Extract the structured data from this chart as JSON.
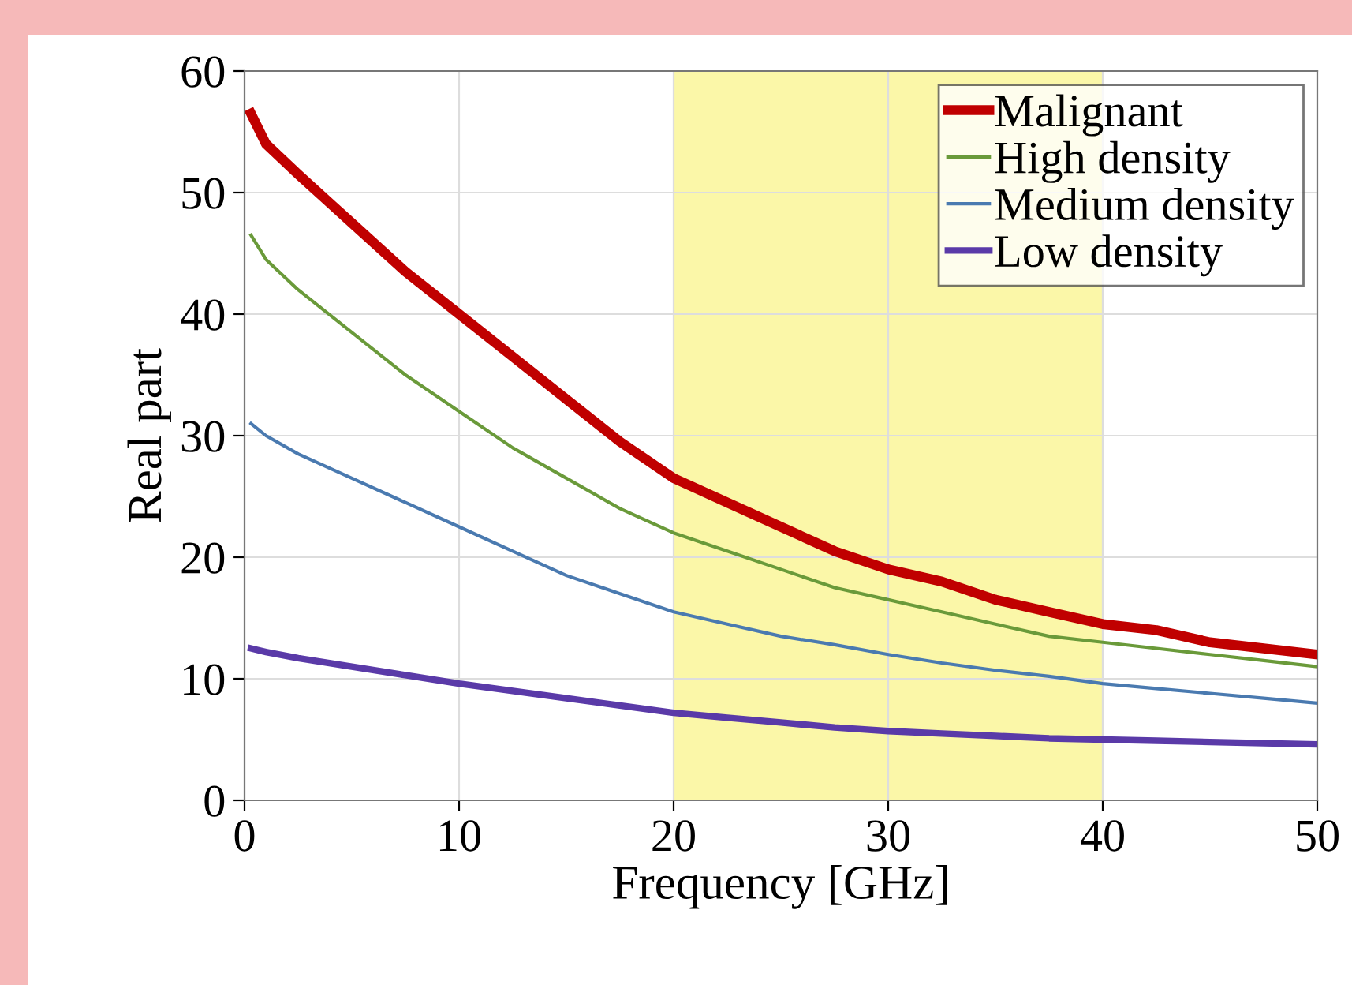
{
  "chart_data": {
    "type": "line",
    "xlabel": "Frequency [GHz]",
    "ylabel": "Real part",
    "xlim": [
      0,
      50
    ],
    "ylim": [
      0,
      60
    ],
    "xticks": [
      0,
      10,
      20,
      30,
      40,
      50
    ],
    "yticks": [
      0,
      10,
      20,
      30,
      40,
      50,
      60
    ],
    "grid": true,
    "legend": "top right",
    "marker": "none",
    "line_style": "solid",
    "bands": [
      {
        "axis": "x",
        "from": 20,
        "to": 40,
        "color": "#fbf7a8"
      }
    ],
    "series": [
      {
        "name": "Malignant",
        "color": "#c00000",
        "x": [
          0.3,
          1,
          2.5,
          5,
          7.5,
          10,
          12.5,
          15,
          17.5,
          20,
          22.5,
          25,
          27.5,
          30,
          32.5,
          35,
          37.5,
          40,
          42.5,
          45,
          47.5,
          50
        ],
        "values": [
          56.5,
          54,
          51.5,
          47.5,
          43.5,
          40,
          36.5,
          33,
          29.5,
          26.5,
          24.5,
          22.5,
          20.5,
          19,
          18,
          16.5,
          15.5,
          14.5,
          14,
          13,
          12.5,
          12
        ]
      },
      {
        "name": "High density",
        "color": "#6a9a3a",
        "x": [
          0.3,
          1,
          2.5,
          5,
          7.5,
          10,
          12.5,
          15,
          17.5,
          20,
          22.5,
          25,
          27.5,
          30,
          32.5,
          35,
          37.5,
          40,
          42.5,
          45,
          47.5,
          50
        ],
        "values": [
          46.5,
          44.5,
          42,
          38.5,
          35,
          32,
          29,
          26.5,
          24,
          22,
          20.5,
          19,
          17.5,
          16.5,
          15.5,
          14.5,
          13.5,
          13,
          12.5,
          12,
          11.5,
          11
        ]
      },
      {
        "name": "Medium density",
        "color": "#4a7ab0",
        "x": [
          0.3,
          1,
          2.5,
          5,
          7.5,
          10,
          12.5,
          15,
          17.5,
          20,
          22.5,
          25,
          27.5,
          30,
          32.5,
          35,
          37.5,
          40,
          42.5,
          45,
          47.5,
          50
        ],
        "values": [
          31,
          30,
          28.5,
          26.5,
          24.5,
          22.5,
          20.5,
          18.5,
          17,
          15.5,
          14.5,
          13.5,
          12.8,
          12,
          11.3,
          10.7,
          10.2,
          9.6,
          9.2,
          8.8,
          8.4,
          8
        ]
      },
      {
        "name": "Low density",
        "color": "#5a3aa8",
        "x": [
          0.3,
          1,
          2.5,
          5,
          7.5,
          10,
          12.5,
          15,
          17.5,
          20,
          22.5,
          25,
          27.5,
          30,
          32.5,
          35,
          37.5,
          40,
          42.5,
          45,
          47.5,
          50
        ],
        "values": [
          12.5,
          12.2,
          11.7,
          11,
          10.3,
          9.6,
          9,
          8.4,
          7.8,
          7.2,
          6.8,
          6.4,
          6,
          5.7,
          5.5,
          5.3,
          5.1,
          5,
          4.9,
          4.8,
          4.7,
          4.6
        ]
      }
    ]
  }
}
